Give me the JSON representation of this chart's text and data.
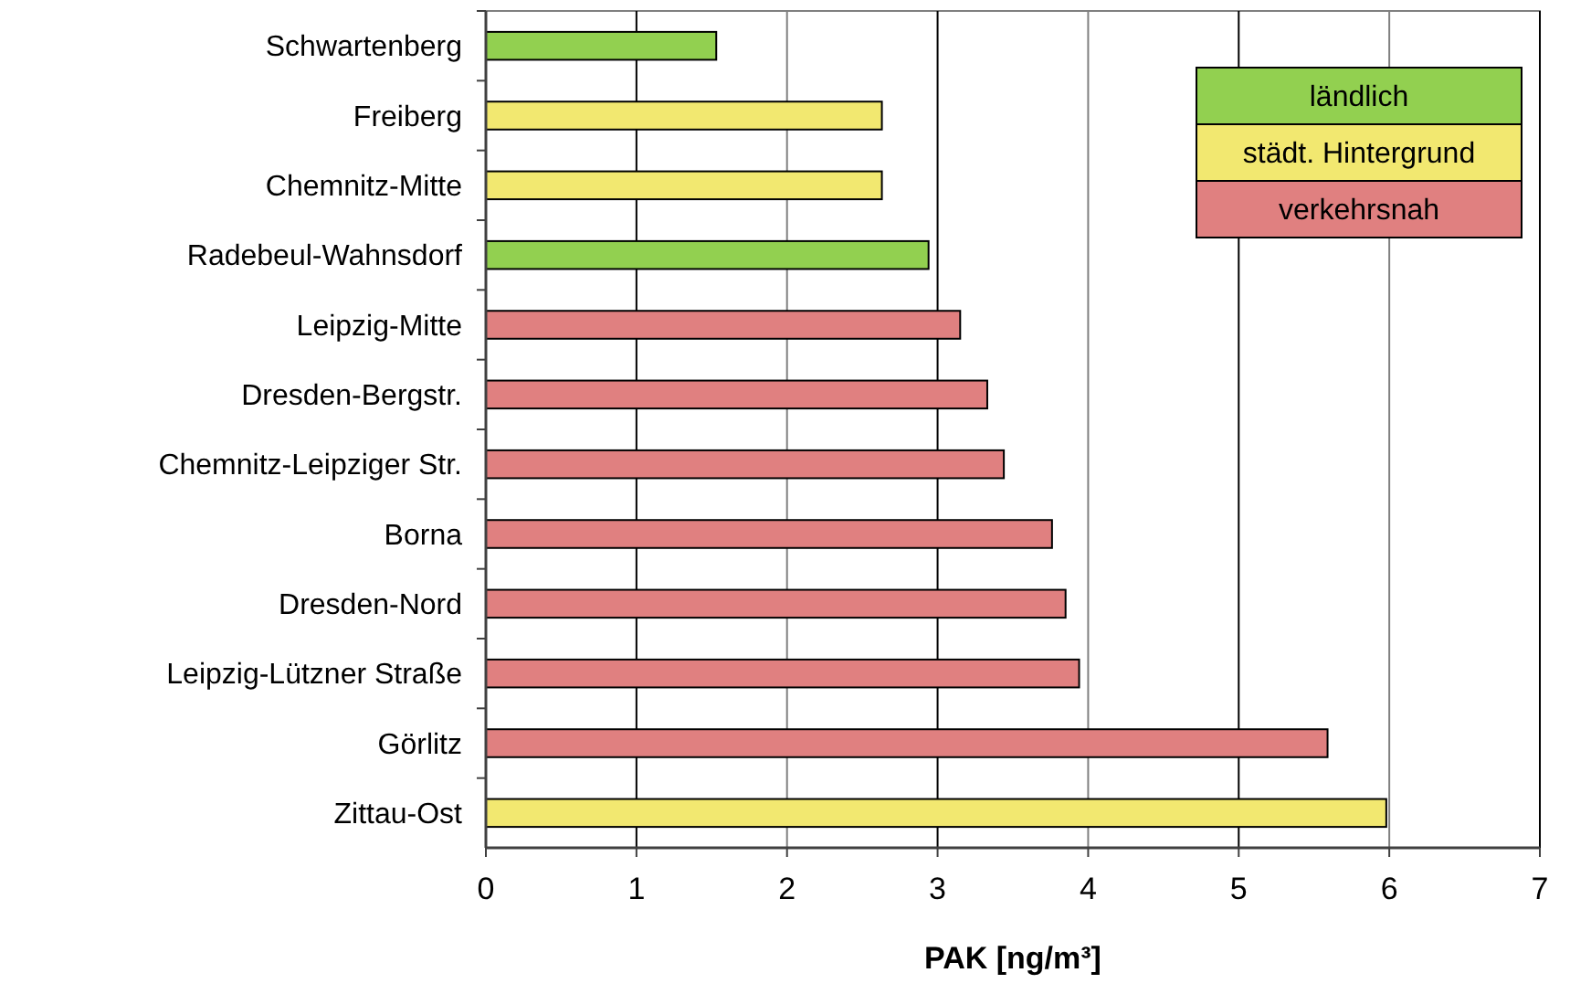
{
  "chart_data": {
    "type": "bar",
    "orientation": "horizontal",
    "xlabel": "PAK [ng/m³]",
    "categories": [
      "Schwartenberg",
      "Freiberg",
      "Chemnitz-Mitte",
      "Radebeul-Wahnsdorf",
      "Leipzig-Mitte",
      "Dresden-Bergstr.",
      "Chemnitz-Leipziger Str.",
      "Borna",
      "Dresden-Nord",
      "Leipzig-Lützner Straße",
      "Görlitz",
      "Zittau-Ost"
    ],
    "series": [
      {
        "name": "ländlich",
        "color": "#92d050",
        "values": [
          1.53,
          null,
          null,
          2.94,
          null,
          null,
          null,
          null,
          null,
          null,
          null,
          null
        ]
      },
      {
        "name": "städt. Hintergrund",
        "color": "#f2e870",
        "values": [
          null,
          2.63,
          2.63,
          null,
          null,
          null,
          null,
          null,
          null,
          null,
          null,
          5.98
        ]
      },
      {
        "name": "verkehrsnah",
        "color": "#e08080",
        "values": [
          null,
          null,
          null,
          null,
          3.15,
          3.33,
          3.44,
          3.76,
          3.85,
          3.94,
          5.59,
          null
        ]
      }
    ],
    "xlim": [
      0,
      7
    ],
    "xticks": [
      0,
      1,
      2,
      3,
      4,
      5,
      6,
      7
    ],
    "grid": "x",
    "legend": "top right"
  }
}
